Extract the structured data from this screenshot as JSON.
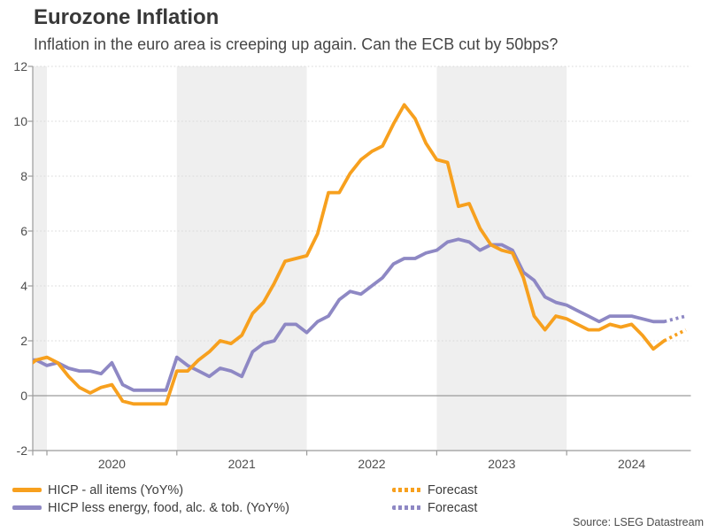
{
  "chart_data": {
    "type": "line",
    "title": "Eurozone Inflation",
    "subtitle": "Inflation in the euro area is creeping up again. Can the ECB cut by 50bps?",
    "source": "Source: LSEG Datastream",
    "ylim": [
      -2,
      12
    ],
    "y_ticks": [
      -2,
      0,
      2,
      4,
      6,
      8,
      10,
      12
    ],
    "x_tick_labels": [
      "2020",
      "2021",
      "2022",
      "2023",
      "2024"
    ],
    "grid": "horizontal-dotted",
    "legend_position": "bottom-left",
    "shaded_bands": [
      [
        "2019-11",
        "2020-01"
      ],
      [
        "2021-01",
        "2022-01"
      ],
      [
        "2023-01",
        "2024-01"
      ]
    ],
    "forecast_start": "2024-11",
    "forecast_label": "Forecast",
    "months": [
      "2019-11",
      "2019-12",
      "2020-01",
      "2020-02",
      "2020-03",
      "2020-04",
      "2020-05",
      "2020-06",
      "2020-07",
      "2020-08",
      "2020-09",
      "2020-10",
      "2020-11",
      "2020-12",
      "2021-01",
      "2021-02",
      "2021-03",
      "2021-04",
      "2021-05",
      "2021-06",
      "2021-07",
      "2021-08",
      "2021-09",
      "2021-10",
      "2021-11",
      "2021-12",
      "2022-01",
      "2022-02",
      "2022-03",
      "2022-04",
      "2022-05",
      "2022-06",
      "2022-07",
      "2022-08",
      "2022-09",
      "2022-10",
      "2022-11",
      "2022-12",
      "2023-01",
      "2023-02",
      "2023-03",
      "2023-04",
      "2023-05",
      "2023-06",
      "2023-07",
      "2023-08",
      "2023-09",
      "2023-10",
      "2023-11",
      "2023-12",
      "2024-01",
      "2024-02",
      "2024-03",
      "2024-04",
      "2024-05",
      "2024-06",
      "2024-07",
      "2024-08",
      "2024-09",
      "2024-10",
      "2024-11",
      "2024-12"
    ],
    "series": [
      {
        "name": "HICP - all items (YoY%)",
        "color": "#F7A01E",
        "values": [
          1.0,
          1.3,
          1.4,
          1.2,
          0.7,
          0.3,
          0.1,
          0.3,
          0.4,
          -0.2,
          -0.3,
          -0.3,
          -0.3,
          -0.3,
          0.9,
          0.9,
          1.3,
          1.6,
          2.0,
          1.9,
          2.2,
          3.0,
          3.4,
          4.1,
          4.9,
          5.0,
          5.1,
          5.9,
          7.4,
          7.4,
          8.1,
          8.6,
          8.9,
          9.1,
          9.9,
          10.6,
          10.1,
          9.2,
          8.6,
          8.5,
          6.9,
          7.0,
          6.1,
          5.5,
          5.3,
          5.2,
          4.3,
          2.9,
          2.4,
          2.9,
          2.8,
          2.6,
          2.4,
          2.4,
          2.6,
          2.5,
          2.6,
          2.2,
          1.7,
          2.0,
          2.2,
          2.4
        ]
      },
      {
        "name": "HICP less energy, food, alc. & tob. (YoY%)",
        "color": "#8E88C4",
        "values": [
          1.3,
          1.3,
          1.1,
          1.2,
          1.0,
          0.9,
          0.9,
          0.8,
          1.2,
          0.4,
          0.2,
          0.2,
          0.2,
          0.2,
          1.4,
          1.1,
          0.9,
          0.7,
          1.0,
          0.9,
          0.7,
          1.6,
          1.9,
          2.0,
          2.6,
          2.6,
          2.3,
          2.7,
          2.9,
          3.5,
          3.8,
          3.7,
          4.0,
          4.3,
          4.8,
          5.0,
          5.0,
          5.2,
          5.3,
          5.6,
          5.7,
          5.6,
          5.3,
          5.5,
          5.5,
          5.3,
          4.5,
          4.2,
          3.6,
          3.4,
          3.3,
          3.1,
          2.9,
          2.7,
          2.9,
          2.9,
          2.9,
          2.8,
          2.7,
          2.7,
          2.8,
          2.9
        ]
      }
    ]
  },
  "colors": {
    "band": "#EFEFEF",
    "grid": "#D8D8D8",
    "axis": "#9B9B9B",
    "title_text": "#383838",
    "subtitle_text": "#464646",
    "tick_text": "#4D4D4D",
    "legend_text": "#3D3D3D"
  }
}
